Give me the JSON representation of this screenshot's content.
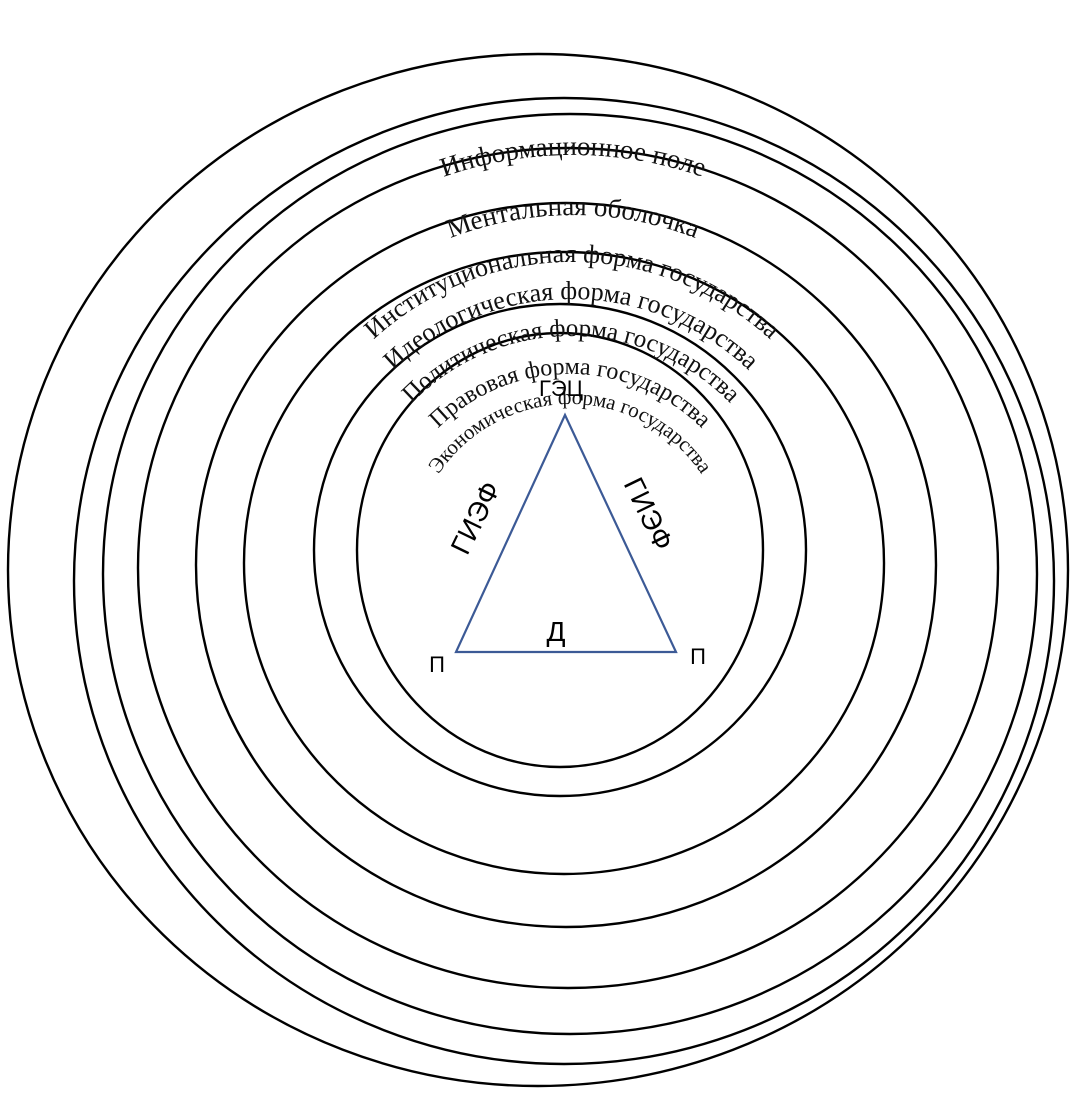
{
  "rings": [
    {
      "label": "Информационное поле"
    },
    {
      "label": "Ментальная оболочка"
    },
    {
      "label": "Институциональная форма государства"
    },
    {
      "label": "Идеологическая форма государства"
    },
    {
      "label": "Политическая форма государства"
    },
    {
      "label": "Правовая форма государства"
    },
    {
      "label": "Экономическая форма государства"
    }
  ],
  "triangle": {
    "color": "#3c5a96",
    "apex_label": "ГЭЦ",
    "left_label": "П",
    "right_label": "П",
    "left_edge_label": "ГИЭФ",
    "right_edge_label": "ГИЭФ",
    "base_label": "Д"
  }
}
